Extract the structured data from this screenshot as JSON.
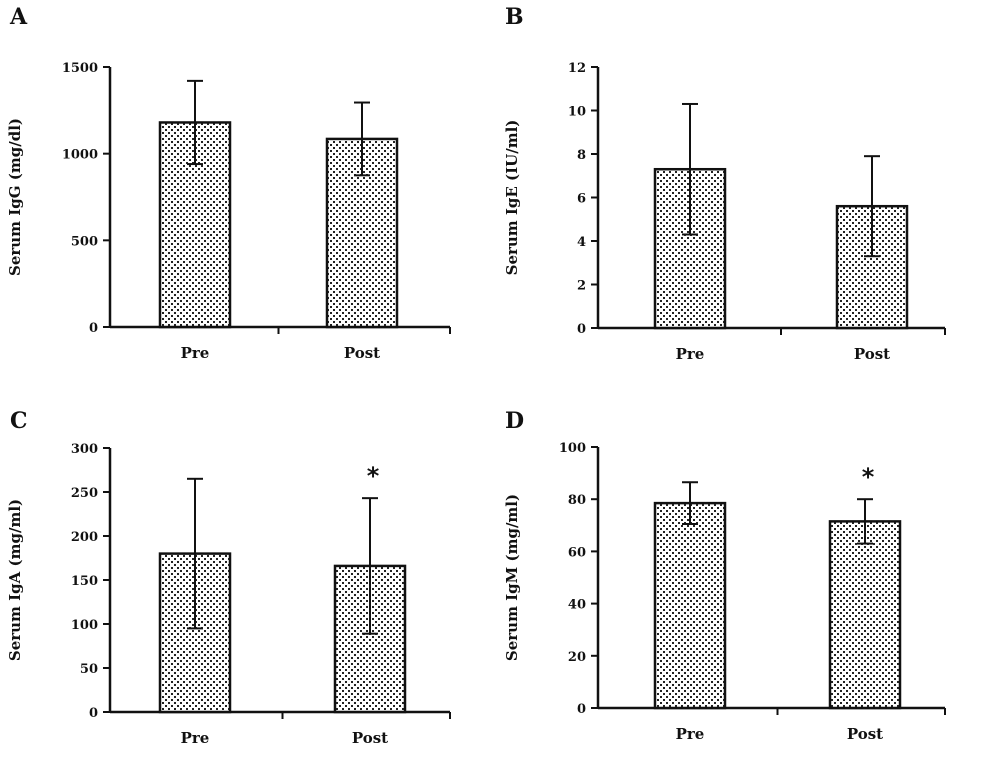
{
  "chart_data": [
    {
      "panel": "A",
      "type": "bar",
      "categories": [
        "Pre",
        "Post"
      ],
      "values": [
        1180,
        1085
      ],
      "errors": [
        240,
        210
      ],
      "ylabel": "Serum IgG (mg/dl)",
      "ylim": [
        0,
        1500
      ],
      "yticks": [
        "0",
        "500",
        "1000",
        "1500"
      ],
      "annotations": [
        "",
        ""
      ]
    },
    {
      "panel": "B",
      "type": "bar",
      "categories": [
        "Pre",
        "Post"
      ],
      "values": [
        7.3,
        5.6
      ],
      "errors": [
        3.0,
        2.3
      ],
      "ylabel": "Serum IgE (IU/ml)",
      "ylim": [
        0,
        12
      ],
      "yticks": [
        "0",
        "2",
        "4",
        "6",
        "8",
        "10",
        "12"
      ],
      "annotations": [
        "",
        ""
      ]
    },
    {
      "panel": "C",
      "type": "bar",
      "categories": [
        "Pre",
        "Post"
      ],
      "values": [
        180,
        166
      ],
      "errors": [
        85,
        77
      ],
      "ylabel": "Serum IgA (mg/ml)",
      "ylim": [
        0,
        300
      ],
      "yticks": [
        "0",
        "50",
        "100",
        "150",
        "200",
        "250",
        "300"
      ],
      "annotations": [
        "",
        "*"
      ]
    },
    {
      "panel": "D",
      "type": "bar",
      "categories": [
        "Pre",
        "Post"
      ],
      "values": [
        78.5,
        71.5
      ],
      "errors": [
        8,
        8.5
      ],
      "ylabel": "Serum IgM (mg/ml)",
      "ylim": [
        0,
        100
      ],
      "yticks": [
        "0",
        "20",
        "40",
        "60",
        "80",
        "100"
      ],
      "annotations": [
        "",
        "*"
      ]
    }
  ]
}
